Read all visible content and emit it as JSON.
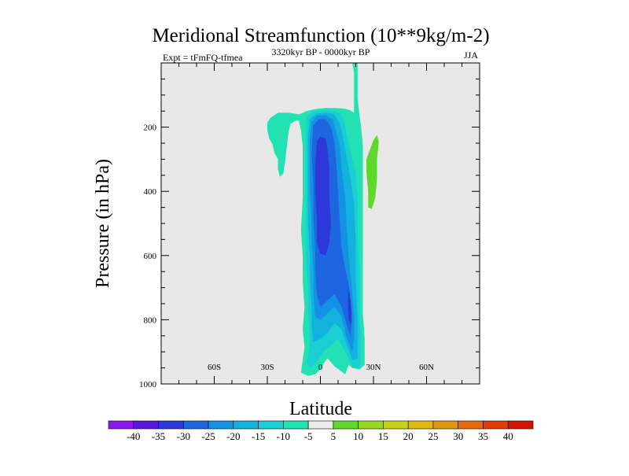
{
  "chart_data": {
    "type": "contour",
    "title": "Meridional Streamfunction (10**9kg/m-2)",
    "left_string": "Expt = tFmFQ-tfmea",
    "center_string": "3320kyr BP - 0000kyr BP",
    "right_string": "JJA",
    "xlabel": "Latitude",
    "ylabel": "Pressure (in hPa)",
    "x_range": [
      -90,
      90
    ],
    "y_range": [
      0,
      1000
    ],
    "y_inverted": true,
    "x_ticks": [
      {
        "value": -60,
        "label": "60S"
      },
      {
        "value": -30,
        "label": "30S"
      },
      {
        "value": 0,
        "label": "0"
      },
      {
        "value": 30,
        "label": "30N"
      },
      {
        "value": 60,
        "label": "60N"
      }
    ],
    "y_ticks": [
      {
        "value": 200,
        "label": "200"
      },
      {
        "value": 400,
        "label": "400"
      },
      {
        "value": 600,
        "label": "600"
      },
      {
        "value": 800,
        "label": "800"
      },
      {
        "value": 1000,
        "label": "1000"
      }
    ],
    "background_color": "#e8e8e8",
    "colorbar": {
      "labels": [
        "-40",
        "-35",
        "-30",
        "-25",
        "-20",
        "-15",
        "-10",
        "-5",
        "5",
        "10",
        "15",
        "20",
        "25",
        "30",
        "35",
        "40"
      ],
      "colors": [
        "#8a1be6",
        "#5a17d8",
        "#2e38d8",
        "#1d66df",
        "#1491e2",
        "#13b2de",
        "#19cfd3",
        "#22e2b3",
        "#ececec",
        "#5ed82b",
        "#9ad81f",
        "#c7d11a",
        "#dfb913",
        "#e0950f",
        "#e46a0b",
        "#e33d05",
        "#d11500"
      ]
    },
    "regions": [
      {
        "name": "contour-neg-5-left-lobe",
        "fill": "#22e2b3",
        "pts": [
          [
            -18,
            215
          ],
          [
            -17,
            190
          ],
          [
            -14,
            180
          ],
          [
            -10,
            180
          ],
          [
            -8,
            170
          ],
          [
            -12,
            160
          ],
          [
            -18,
            155
          ],
          [
            -24,
            155
          ],
          [
            -28,
            170
          ],
          [
            -30,
            185
          ],
          [
            -30,
            210
          ],
          [
            -29,
            235
          ],
          [
            -27,
            255
          ],
          [
            -26,
            280
          ],
          [
            -24,
            300
          ],
          [
            -24,
            330
          ],
          [
            -23,
            355
          ],
          [
            -21,
            345
          ],
          [
            -20,
            310
          ],
          [
            -19,
            260
          ]
        ]
      },
      {
        "name": "contour-neg-5-main",
        "fill": "#22e2b3",
        "pts": [
          [
            -12,
            160
          ],
          [
            -8,
            150
          ],
          [
            -2,
            143
          ],
          [
            4,
            140
          ],
          [
            10,
            141
          ],
          [
            14,
            143
          ],
          [
            17,
            148
          ],
          [
            19,
            155
          ],
          [
            19,
            115
          ],
          [
            19,
            30
          ],
          [
            18,
            0
          ],
          [
            21,
            0
          ],
          [
            21,
            40
          ],
          [
            21,
            110
          ],
          [
            22,
            160
          ],
          [
            23,
            200
          ],
          [
            24,
            260
          ],
          [
            24,
            320
          ],
          [
            24,
            380
          ],
          [
            24,
            420
          ],
          [
            24,
            450
          ],
          [
            24,
            500
          ],
          [
            24,
            560
          ],
          [
            24,
            620
          ],
          [
            24,
            700
          ],
          [
            24,
            780
          ],
          [
            25,
            860
          ],
          [
            25,
            940
          ],
          [
            22,
            955
          ],
          [
            18,
            950
          ],
          [
            16,
            940
          ],
          [
            14,
            970
          ],
          [
            8,
            945
          ],
          [
            4,
            920
          ],
          [
            2,
            935
          ],
          [
            0,
            955
          ],
          [
            -3,
            970
          ],
          [
            -7,
            975
          ],
          [
            -11,
            965
          ],
          [
            -10,
            925
          ],
          [
            -9,
            885
          ],
          [
            -10,
            830
          ],
          [
            -9,
            760
          ],
          [
            -10,
            680
          ],
          [
            -10,
            600
          ],
          [
            -11,
            520
          ],
          [
            -10,
            420
          ],
          [
            -10,
            320
          ],
          [
            -10,
            260
          ],
          [
            -11,
            210
          ],
          [
            -12,
            185
          ]
        ]
      },
      {
        "name": "contour-neg-10",
        "fill": "#19cfd3",
        "pts": [
          [
            -8,
            170
          ],
          [
            -4,
            152
          ],
          [
            2,
            148
          ],
          [
            8,
            150
          ],
          [
            12,
            160
          ],
          [
            14,
            195
          ],
          [
            16,
            250
          ],
          [
            18,
            300
          ],
          [
            20,
            340
          ],
          [
            21,
            420
          ],
          [
            21,
            540
          ],
          [
            22,
            640
          ],
          [
            22,
            760
          ],
          [
            23,
            880
          ],
          [
            22,
            950
          ],
          [
            18,
            945
          ],
          [
            16,
            920
          ],
          [
            12,
            880
          ],
          [
            10,
            860
          ],
          [
            6,
            880
          ],
          [
            2,
            900
          ],
          [
            -2,
            930
          ],
          [
            -6,
            950
          ],
          [
            -8,
            930
          ],
          [
            -6,
            890
          ],
          [
            -6,
            840
          ],
          [
            -7,
            770
          ],
          [
            -7,
            700
          ],
          [
            -8,
            620
          ],
          [
            -8,
            520
          ],
          [
            -8,
            420
          ],
          [
            -8,
            320
          ],
          [
            -8,
            240
          ]
        ]
      },
      {
        "name": "contour-neg-15",
        "fill": "#13b2de",
        "pts": [
          [
            -6,
            175
          ],
          [
            -2,
            158
          ],
          [
            3,
            155
          ],
          [
            8,
            160
          ],
          [
            11,
            190
          ],
          [
            13,
            240
          ],
          [
            15,
            300
          ],
          [
            17,
            360
          ],
          [
            19,
            440
          ],
          [
            20,
            560
          ],
          [
            20,
            680
          ],
          [
            21,
            800
          ],
          [
            21,
            920
          ],
          [
            18,
            925
          ],
          [
            15,
            880
          ],
          [
            12,
            830
          ],
          [
            8,
            810
          ],
          [
            4,
            840
          ],
          [
            0,
            860
          ],
          [
            -4,
            870
          ],
          [
            -5,
            820
          ],
          [
            -5,
            760
          ],
          [
            -6,
            680
          ],
          [
            -6,
            600
          ],
          [
            -7,
            500
          ],
          [
            -7,
            400
          ],
          [
            -7,
            300
          ],
          [
            -7,
            220
          ]
        ]
      },
      {
        "name": "contour-neg-20",
        "fill": "#1491e2",
        "pts": [
          [
            -5,
            185
          ],
          [
            -2,
            165
          ],
          [
            3,
            163
          ],
          [
            7,
            175
          ],
          [
            9,
            215
          ],
          [
            11,
            260
          ],
          [
            12,
            330
          ],
          [
            14,
            420
          ],
          [
            15,
            520
          ],
          [
            16,
            600
          ],
          [
            17,
            660
          ],
          [
            18,
            720
          ],
          [
            19,
            780
          ],
          [
            19,
            860
          ],
          [
            18,
            900
          ],
          [
            15,
            860
          ],
          [
            12,
            790
          ],
          [
            8,
            760
          ],
          [
            4,
            780
          ],
          [
            0,
            800
          ],
          [
            -3,
            790
          ],
          [
            -4,
            720
          ],
          [
            -4,
            640
          ],
          [
            -5,
            560
          ],
          [
            -5,
            480
          ],
          [
            -6,
            400
          ],
          [
            -6,
            300
          ],
          [
            -6,
            230
          ]
        ]
      },
      {
        "name": "contour-neg-25",
        "fill": "#1d66df",
        "pts": [
          [
            -4,
            195
          ],
          [
            -1,
            175
          ],
          [
            3,
            175
          ],
          [
            6,
            200
          ],
          [
            8,
            250
          ],
          [
            9,
            320
          ],
          [
            10,
            400
          ],
          [
            11,
            500
          ],
          [
            12,
            580
          ],
          [
            14,
            640
          ],
          [
            16,
            690
          ],
          [
            17,
            740
          ],
          [
            18,
            800
          ],
          [
            17,
            850
          ],
          [
            15,
            820
          ],
          [
            12,
            760
          ],
          [
            8,
            720
          ],
          [
            4,
            740
          ],
          [
            0,
            760
          ],
          [
            -2,
            720
          ],
          [
            -3,
            640
          ],
          [
            -3,
            560
          ],
          [
            -4,
            480
          ],
          [
            -4,
            380
          ],
          [
            -5,
            280
          ]
        ]
      },
      {
        "name": "contour-neg-30",
        "fill": "#2e38d8",
        "pts": [
          [
            -2,
            245
          ],
          [
            0,
            230
          ],
          [
            3,
            235
          ],
          [
            4,
            270
          ],
          [
            5,
            330
          ],
          [
            5,
            420
          ],
          [
            6,
            500
          ],
          [
            5,
            560
          ],
          [
            3,
            600
          ],
          [
            0,
            595
          ],
          [
            -2,
            560
          ],
          [
            -2,
            480
          ],
          [
            -3,
            400
          ],
          [
            -3,
            320
          ]
        ]
      },
      {
        "name": "contour-neg-30-lower",
        "fill": "#2e38d8",
        "pts": [
          [
            16,
            700
          ],
          [
            17,
            735
          ],
          [
            17.5,
            780
          ],
          [
            17,
            815
          ],
          [
            16,
            800
          ],
          [
            15.5,
            750
          ]
        ]
      },
      {
        "name": "contour-pos-10",
        "fill": "#5ed82b",
        "pts": [
          [
            28,
            270
          ],
          [
            30,
            240
          ],
          [
            32,
            225
          ],
          [
            33,
            245
          ],
          [
            32,
            300
          ],
          [
            32,
            360
          ],
          [
            31,
            420
          ],
          [
            29,
            455
          ],
          [
            27,
            450
          ],
          [
            27,
            400
          ],
          [
            26,
            340
          ],
          [
            26,
            300
          ]
        ]
      }
    ]
  }
}
